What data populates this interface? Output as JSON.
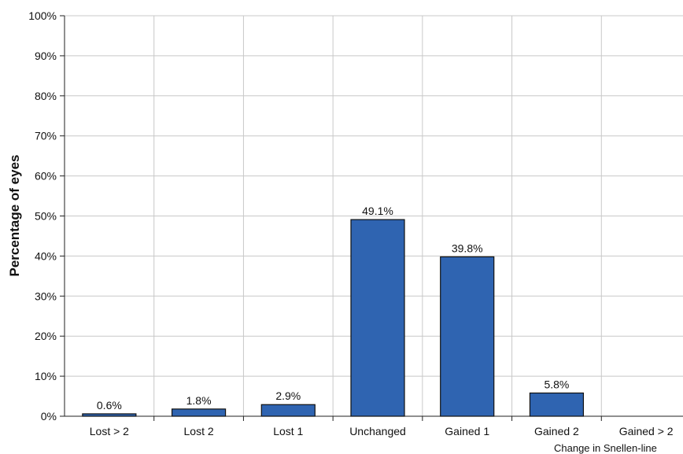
{
  "chart_data": {
    "type": "bar",
    "categories": [
      "Lost > 2",
      "Lost 2",
      "Lost 1",
      "Unchanged",
      "Gained 1",
      "Gained 2",
      "Gained > 2"
    ],
    "values": [
      0.6,
      1.8,
      2.9,
      49.1,
      39.8,
      5.8,
      0
    ],
    "data_labels": [
      "0.6%",
      "1.8%",
      "2.9%",
      "49.1%",
      "39.8%",
      "5.8%",
      ""
    ],
    "xlabel": "Change in Snellen-line",
    "ylabel": "Percentage of eyes",
    "ylim": [
      0,
      100
    ],
    "yticks": [
      "0%",
      "10%",
      "20%",
      "30%",
      "40%",
      "50%",
      "60%",
      "70%",
      "80%",
      "90%",
      "100%"
    ],
    "grid": true,
    "bar_color": "#2f64b1"
  }
}
